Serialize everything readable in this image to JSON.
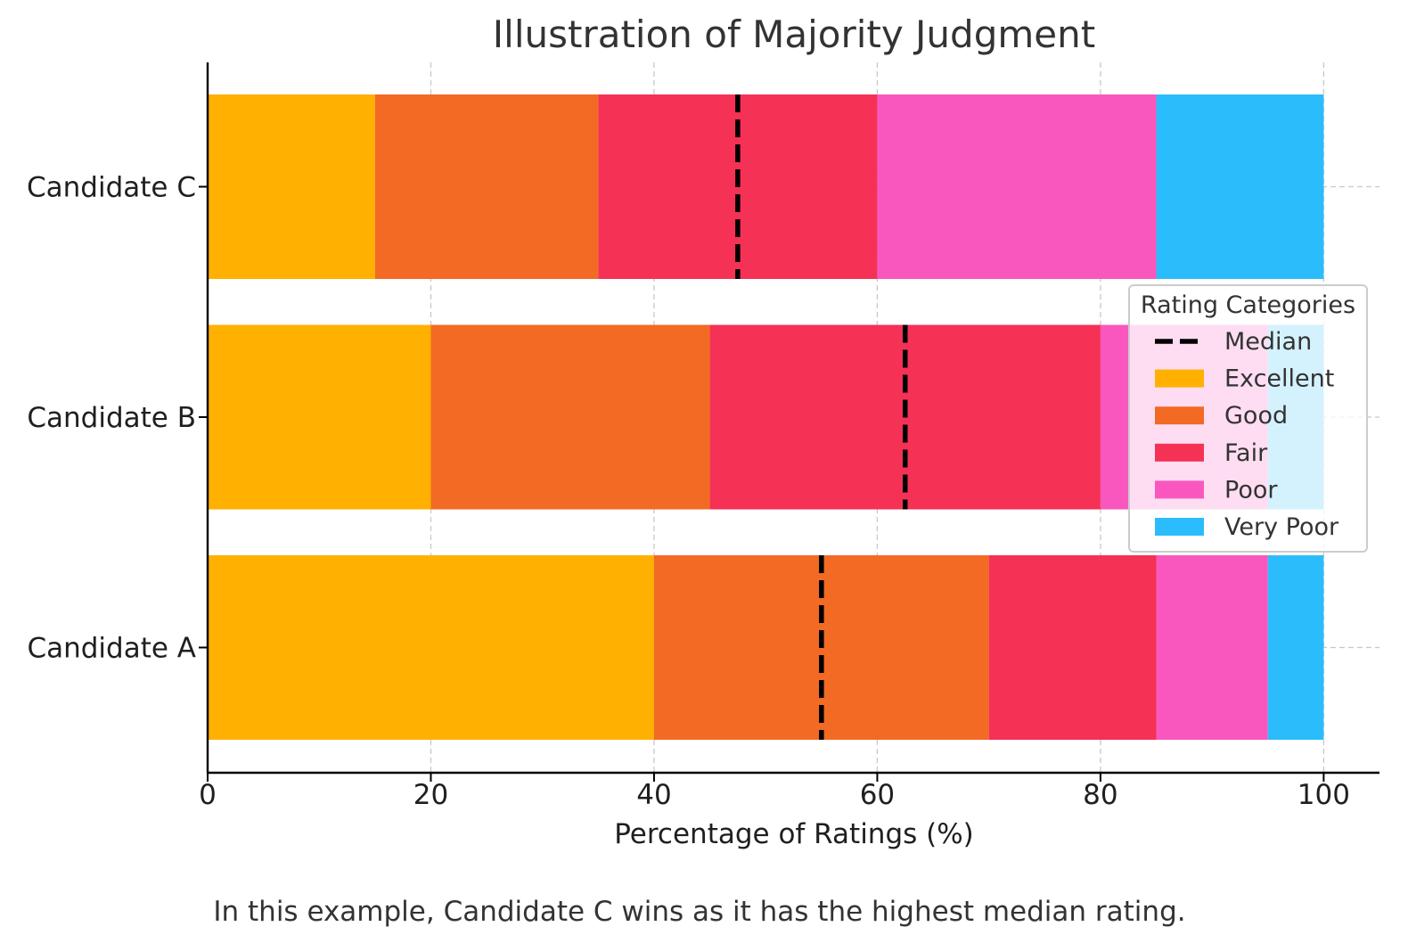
{
  "chart_data": {
    "type": "bar",
    "orientation": "horizontal",
    "stacked": true,
    "title": "Illustration of Majority Judgment",
    "xlabel": "Percentage of Ratings (%)",
    "ylabel": "",
    "xlim": [
      0,
      105
    ],
    "xticks": [
      0,
      20,
      40,
      60,
      80,
      100
    ],
    "grid": true,
    "categories": [
      "Candidate A",
      "Candidate B",
      "Candidate C"
    ],
    "series": [
      {
        "name": "Excellent",
        "color": "#FFB000",
        "values": [
          40,
          20,
          15
        ]
      },
      {
        "name": "Good",
        "color": "#F26A24",
        "values": [
          30,
          25,
          20
        ]
      },
      {
        "name": "Fair",
        "color": "#F53155",
        "values": [
          15,
          35,
          25
        ]
      },
      {
        "name": "Poor",
        "color": "#F957BE",
        "values": [
          10,
          15,
          25
        ]
      },
      {
        "name": "Very Poor",
        "color": "#2BBDFB",
        "values": [
          5,
          5,
          15
        ]
      }
    ],
    "median": {
      "name": "Median",
      "values": [
        55,
        62.5,
        47.5
      ],
      "color": "#000000",
      "style": "dashed"
    },
    "legend": {
      "title": "Rating Categories",
      "placement": "right",
      "entries": [
        "Median",
        "Excellent",
        "Good",
        "Fair",
        "Poor",
        "Very Poor"
      ]
    },
    "caption": "In this example, Candidate C wins as it has the highest median rating."
  }
}
